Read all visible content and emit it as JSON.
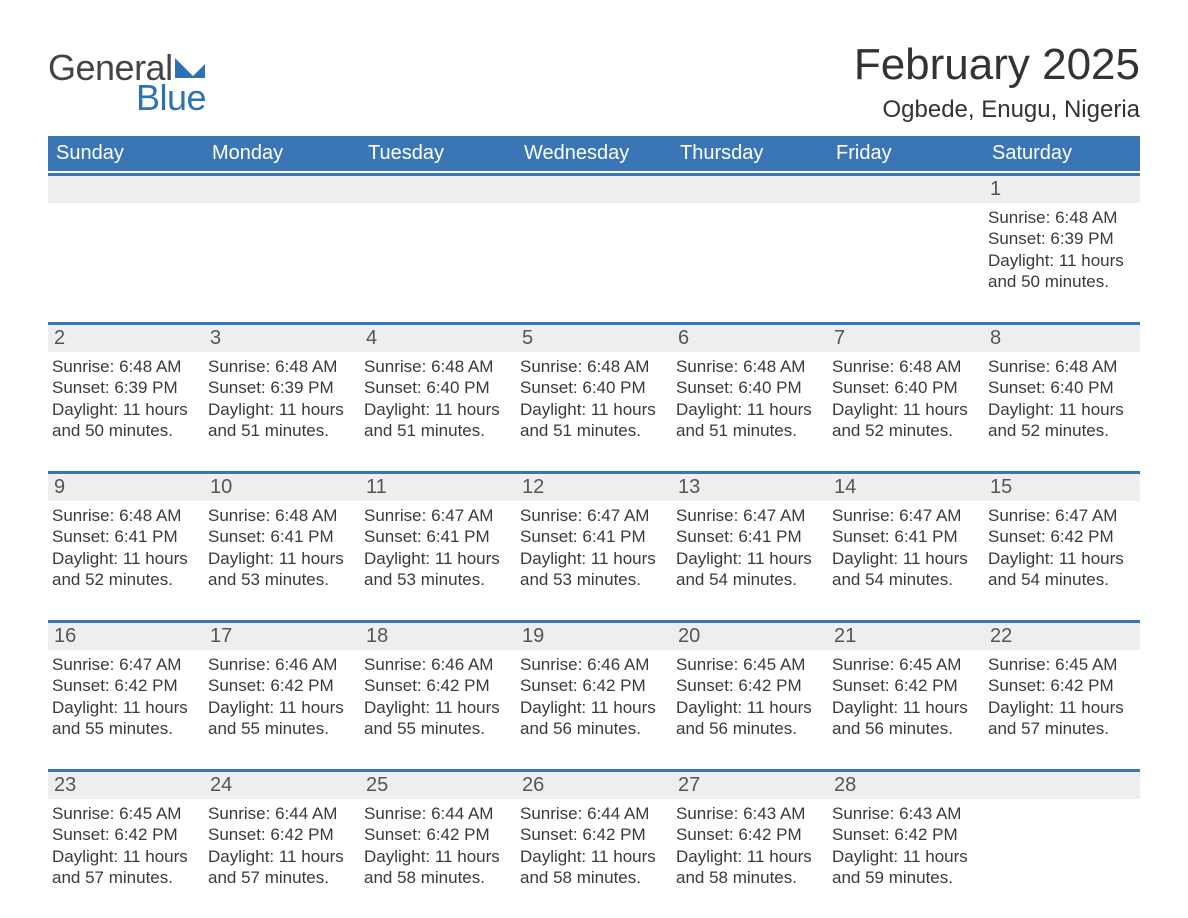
{
  "logo": {
    "text_a": "General",
    "text_b": "Blue",
    "flag_color": "#2e72b4"
  },
  "title": "February 2025",
  "location": "Ogbede, Enugu, Nigeria",
  "colors": {
    "header_bg": "#3a76b5",
    "header_fg": "#ffffff",
    "row_border": "#3a76b5",
    "daynum_bg": "#eceeef",
    "text": "#3a3a3a",
    "logo_blue": "#2e72b4",
    "background": "#ffffff"
  },
  "typography": {
    "title_fontsize": 44,
    "location_fontsize": 24,
    "dow_fontsize": 20,
    "daynum_fontsize": 20,
    "body_fontsize": 17,
    "font_family": "Arial"
  },
  "days_of_week": [
    "Sunday",
    "Monday",
    "Tuesday",
    "Wednesday",
    "Thursday",
    "Friday",
    "Saturday"
  ],
  "calendar": {
    "type": "table",
    "columns": 7,
    "rows": 5,
    "first_weekday_index": 6,
    "days": [
      {
        "n": 1,
        "sunrise": "6:48 AM",
        "sunset": "6:39 PM",
        "daylight": "11 hours and 50 minutes."
      },
      {
        "n": 2,
        "sunrise": "6:48 AM",
        "sunset": "6:39 PM",
        "daylight": "11 hours and 50 minutes."
      },
      {
        "n": 3,
        "sunrise": "6:48 AM",
        "sunset": "6:39 PM",
        "daylight": "11 hours and 51 minutes."
      },
      {
        "n": 4,
        "sunrise": "6:48 AM",
        "sunset": "6:40 PM",
        "daylight": "11 hours and 51 minutes."
      },
      {
        "n": 5,
        "sunrise": "6:48 AM",
        "sunset": "6:40 PM",
        "daylight": "11 hours and 51 minutes."
      },
      {
        "n": 6,
        "sunrise": "6:48 AM",
        "sunset": "6:40 PM",
        "daylight": "11 hours and 51 minutes."
      },
      {
        "n": 7,
        "sunrise": "6:48 AM",
        "sunset": "6:40 PM",
        "daylight": "11 hours and 52 minutes."
      },
      {
        "n": 8,
        "sunrise": "6:48 AM",
        "sunset": "6:40 PM",
        "daylight": "11 hours and 52 minutes."
      },
      {
        "n": 9,
        "sunrise": "6:48 AM",
        "sunset": "6:41 PM",
        "daylight": "11 hours and 52 minutes."
      },
      {
        "n": 10,
        "sunrise": "6:48 AM",
        "sunset": "6:41 PM",
        "daylight": "11 hours and 53 minutes."
      },
      {
        "n": 11,
        "sunrise": "6:47 AM",
        "sunset": "6:41 PM",
        "daylight": "11 hours and 53 minutes."
      },
      {
        "n": 12,
        "sunrise": "6:47 AM",
        "sunset": "6:41 PM",
        "daylight": "11 hours and 53 minutes."
      },
      {
        "n": 13,
        "sunrise": "6:47 AM",
        "sunset": "6:41 PM",
        "daylight": "11 hours and 54 minutes."
      },
      {
        "n": 14,
        "sunrise": "6:47 AM",
        "sunset": "6:41 PM",
        "daylight": "11 hours and 54 minutes."
      },
      {
        "n": 15,
        "sunrise": "6:47 AM",
        "sunset": "6:42 PM",
        "daylight": "11 hours and 54 minutes."
      },
      {
        "n": 16,
        "sunrise": "6:47 AM",
        "sunset": "6:42 PM",
        "daylight": "11 hours and 55 minutes."
      },
      {
        "n": 17,
        "sunrise": "6:46 AM",
        "sunset": "6:42 PM",
        "daylight": "11 hours and 55 minutes."
      },
      {
        "n": 18,
        "sunrise": "6:46 AM",
        "sunset": "6:42 PM",
        "daylight": "11 hours and 55 minutes."
      },
      {
        "n": 19,
        "sunrise": "6:46 AM",
        "sunset": "6:42 PM",
        "daylight": "11 hours and 56 minutes."
      },
      {
        "n": 20,
        "sunrise": "6:45 AM",
        "sunset": "6:42 PM",
        "daylight": "11 hours and 56 minutes."
      },
      {
        "n": 21,
        "sunrise": "6:45 AM",
        "sunset": "6:42 PM",
        "daylight": "11 hours and 56 minutes."
      },
      {
        "n": 22,
        "sunrise": "6:45 AM",
        "sunset": "6:42 PM",
        "daylight": "11 hours and 57 minutes."
      },
      {
        "n": 23,
        "sunrise": "6:45 AM",
        "sunset": "6:42 PM",
        "daylight": "11 hours and 57 minutes."
      },
      {
        "n": 24,
        "sunrise": "6:44 AM",
        "sunset": "6:42 PM",
        "daylight": "11 hours and 57 minutes."
      },
      {
        "n": 25,
        "sunrise": "6:44 AM",
        "sunset": "6:42 PM",
        "daylight": "11 hours and 58 minutes."
      },
      {
        "n": 26,
        "sunrise": "6:44 AM",
        "sunset": "6:42 PM",
        "daylight": "11 hours and 58 minutes."
      },
      {
        "n": 27,
        "sunrise": "6:43 AM",
        "sunset": "6:42 PM",
        "daylight": "11 hours and 58 minutes."
      },
      {
        "n": 28,
        "sunrise": "6:43 AM",
        "sunset": "6:42 PM",
        "daylight": "11 hours and 59 minutes."
      }
    ],
    "labels": {
      "sunrise": "Sunrise:",
      "sunset": "Sunset:",
      "daylight": "Daylight:"
    }
  }
}
